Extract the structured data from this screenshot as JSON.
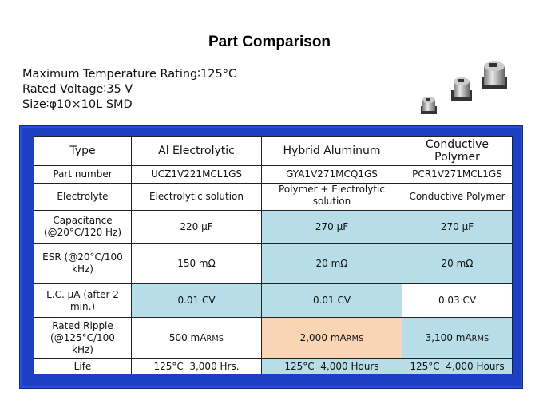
{
  "title": "Part Comparison",
  "specs": [
    "Maximum Temperature Rating∶125°C",
    "Rated Voltage∶35 V",
    "Size∶φ10×10L SMD"
  ],
  "table": {
    "header": [
      "Type",
      "Al Electrolytic",
      "Hybrid Aluminum",
      "Conductive Polymer"
    ],
    "rows": [
      {
        "label": "Part number",
        "cells": [
          "UCZ1V221MCL1GS",
          "GYA1V271MCQ1GS",
          "PCR1V271MCL1GS"
        ]
      },
      {
        "label": "Electrolyte",
        "cells": [
          "Electrolytic solution",
          "Polymer + Electrolytic solution",
          "Conductive Polymer"
        ]
      },
      {
        "label": "Capacitance (@20°C/120 Hz)",
        "cells": [
          "220 µF",
          "270 µF",
          "270 µF"
        ]
      },
      {
        "label": "ESR (@20°C/100 kHz)",
        "cells": [
          "150 mΩ",
          "20 mΩ",
          "20 mΩ"
        ]
      },
      {
        "label": "L.C. µA (after 2 min.)",
        "cells": [
          "0.01 CV",
          "0.01 CV",
          "0.03 CV"
        ]
      },
      {
        "label": "Rated Ripple (@125°C/100 kHz)",
        "cells": [
          "500 mA",
          "2,000 mA",
          "3,100 mA"
        ],
        "unit_suffix": "RMS"
      },
      {
        "label": "Life",
        "cells": [
          "125°C  3,000 Hrs.",
          "125°C  4,000 Hours",
          "125°C  4,000 Hours"
        ]
      }
    ]
  },
  "colors": {
    "frame": "#1c3fc4",
    "highlight_blue": "#b7dde8",
    "highlight_peach": "#fad5b5"
  }
}
